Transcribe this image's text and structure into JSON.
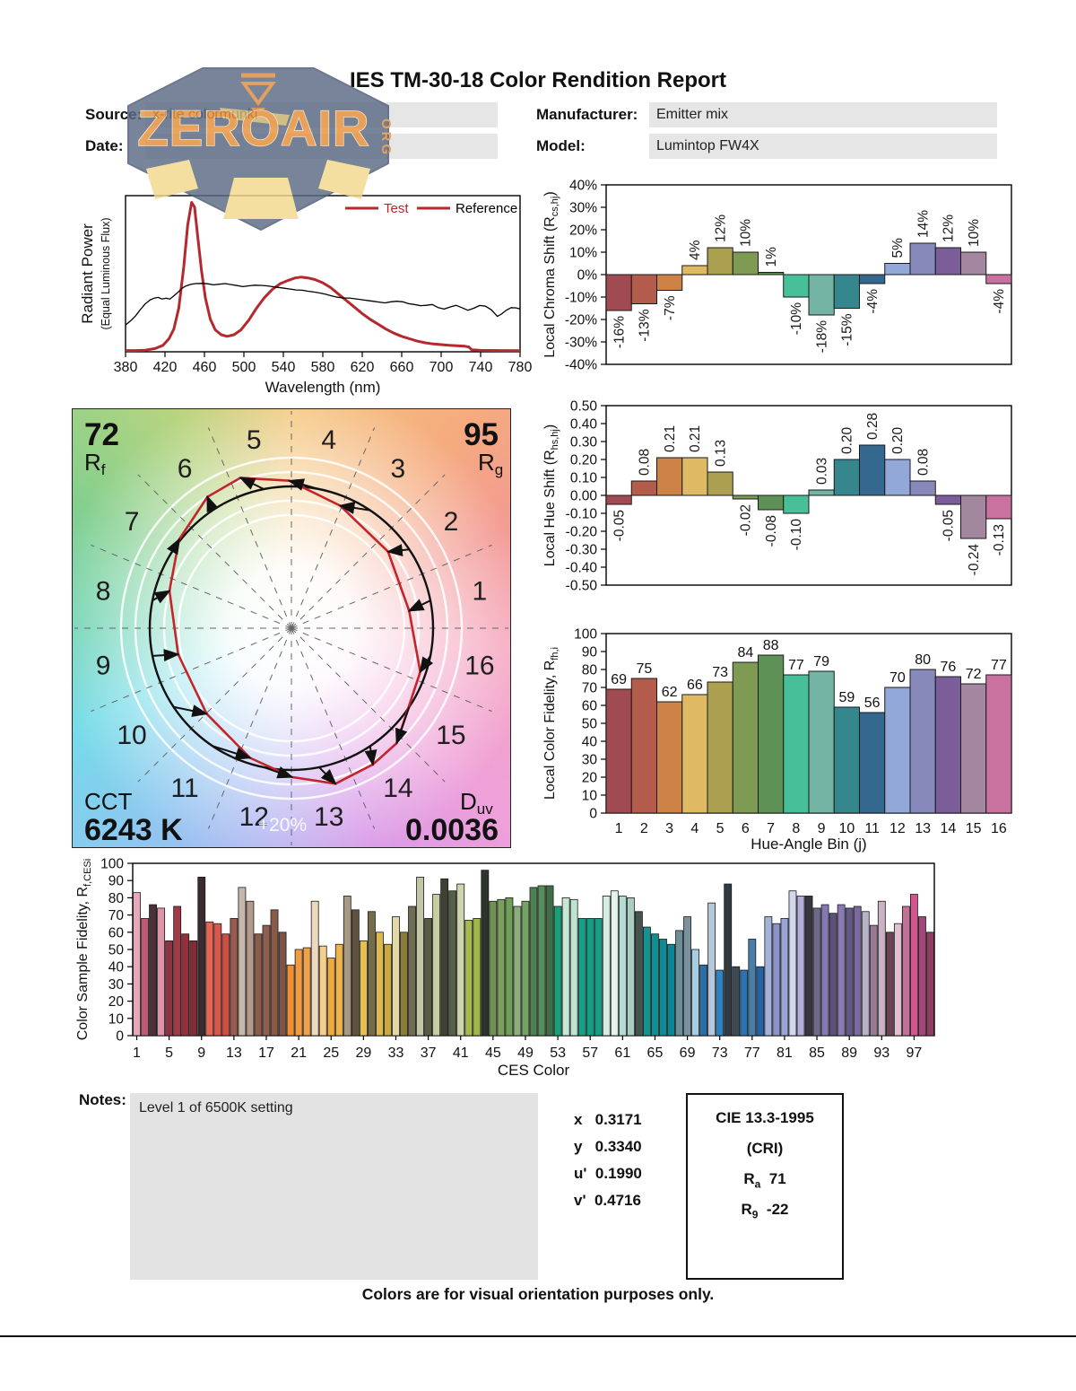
{
  "title": "IES TM-30-18 Color Rendition Report",
  "header": {
    "source_label": "Source:",
    "source_value": "x-rite colormunki",
    "date_label": "Date:",
    "date_value": "",
    "manufacturer_label": "Manufacturer:",
    "manufacturer_value": "Emitter mix",
    "model_label": "Model:",
    "model_value": "Lumintop FW4X"
  },
  "watermark": {
    "text": "ZEROAIR",
    "org": "ORG"
  },
  "notes": {
    "label": "Notes:",
    "text": "Level 1 of 6500K setting"
  },
  "chromaticity": {
    "items": [
      {
        "label": "x",
        "value": "0.3171"
      },
      {
        "label": "y",
        "value": "0.3340"
      },
      {
        "label": "u'",
        "value": "0.1990"
      },
      {
        "label": "v'",
        "value": "0.4716"
      }
    ]
  },
  "cie": {
    "line1": "CIE 13.3-1995",
    "line2": "(CRI)",
    "ra_main": "R",
    "ra_sub": "a",
    "ra_value": "71",
    "r9_main": "R",
    "r9_sub": "9",
    "r9_value": "-22"
  },
  "footer": "Colors are for visual orientation purposes only.",
  "bin_colors": [
    "#A04A52",
    "#B45C4B",
    "#CC8345",
    "#DFB964",
    "#ABA04F",
    "#7F9A52",
    "#5E9156",
    "#47C09A",
    "#73B4A5",
    "#35878D",
    "#34688F",
    "#91A8D8",
    "#8789BA",
    "#7B5D9A",
    "#A3879F",
    "#C9729F"
  ],
  "chart_data": {
    "spd": {
      "type": "line",
      "xlabel": "Wavelength (nm)",
      "ylabel": "Radiant Power",
      "ylabel2": "(Equal Luminous Flux)",
      "x_ticks": [
        380,
        420,
        460,
        500,
        540,
        580,
        620,
        660,
        700,
        740,
        780
      ],
      "xlim": [
        380,
        780
      ],
      "legend": [
        {
          "label": "Test",
          "line_color": "#B5282D",
          "text_color": "#B5282D"
        },
        {
          "label": "Reference",
          "line_color": "#B5282D",
          "text_color": "#000000"
        }
      ],
      "series": [
        {
          "name": "Test",
          "color": "#B5282D",
          "width": 3,
          "points": [
            [
              380,
              0.008
            ],
            [
              390,
              0.008
            ],
            [
              400,
              0.01
            ],
            [
              410,
              0.02
            ],
            [
              418,
              0.04
            ],
            [
              424,
              0.08
            ],
            [
              429,
              0.14
            ],
            [
              434,
              0.27
            ],
            [
              439,
              0.52
            ],
            [
              443,
              0.78
            ],
            [
              447,
              0.92
            ],
            [
              450,
              0.89
            ],
            [
              453,
              0.72
            ],
            [
              457,
              0.5
            ],
            [
              461,
              0.33
            ],
            [
              466,
              0.2
            ],
            [
              471,
              0.135
            ],
            [
              477,
              0.105
            ],
            [
              483,
              0.095
            ],
            [
              490,
              0.105
            ],
            [
              497,
              0.135
            ],
            [
              505,
              0.195
            ],
            [
              513,
              0.27
            ],
            [
              521,
              0.335
            ],
            [
              529,
              0.385
            ],
            [
              537,
              0.42
            ],
            [
              545,
              0.44
            ],
            [
              552,
              0.455
            ],
            [
              558,
              0.46
            ],
            [
              565,
              0.455
            ],
            [
              572,
              0.445
            ],
            [
              580,
              0.425
            ],
            [
              588,
              0.395
            ],
            [
              596,
              0.355
            ],
            [
              604,
              0.315
            ],
            [
              612,
              0.275
            ],
            [
              620,
              0.235
            ],
            [
              628,
              0.2
            ],
            [
              636,
              0.17
            ],
            [
              644,
              0.14
            ],
            [
              652,
              0.115
            ],
            [
              660,
              0.095
            ],
            [
              668,
              0.08
            ],
            [
              676,
              0.065
            ],
            [
              684,
              0.055
            ],
            [
              692,
              0.048
            ],
            [
              700,
              0.044
            ],
            [
              708,
              0.04
            ],
            [
              716,
              0.037
            ],
            [
              724,
              0.034
            ],
            [
              728,
              0.03
            ],
            [
              731,
              0.012
            ],
            [
              740,
              0.009
            ],
            [
              760,
              0.008
            ],
            [
              780,
              0.007
            ]
          ]
        },
        {
          "name": "Reference",
          "color": "#000000",
          "width": 1.3,
          "points": [
            [
              380,
              0.165
            ],
            [
              385,
              0.19
            ],
            [
              390,
              0.22
            ],
            [
              395,
              0.26
            ],
            [
              400,
              0.295
            ],
            [
              405,
              0.32
            ],
            [
              409,
              0.33
            ],
            [
              413,
              0.335
            ],
            [
              417,
              0.325
            ],
            [
              421,
              0.33
            ],
            [
              425,
              0.325
            ],
            [
              429,
              0.345
            ],
            [
              433,
              0.365
            ],
            [
              437,
              0.39
            ],
            [
              441,
              0.405
            ],
            [
              446,
              0.415
            ],
            [
              451,
              0.42
            ],
            [
              457,
              0.421
            ],
            [
              463,
              0.419
            ],
            [
              469,
              0.412
            ],
            [
              475,
              0.416
            ],
            [
              481,
              0.42
            ],
            [
              487,
              0.414
            ],
            [
              493,
              0.408
            ],
            [
              499,
              0.401
            ],
            [
              505,
              0.406
            ],
            [
              511,
              0.41
            ],
            [
              517,
              0.409
            ],
            [
              523,
              0.406
            ],
            [
              529,
              0.401
            ],
            [
              535,
              0.396
            ],
            [
              541,
              0.391
            ],
            [
              547,
              0.386
            ],
            [
              553,
              0.381
            ],
            [
              559,
              0.379
            ],
            [
              565,
              0.373
            ],
            [
              571,
              0.368
            ],
            [
              577,
              0.362
            ],
            [
              583,
              0.354
            ],
            [
              589,
              0.344
            ],
            [
              595,
              0.336
            ],
            [
              601,
              0.331
            ],
            [
              607,
              0.331
            ],
            [
              613,
              0.326
            ],
            [
              619,
              0.321
            ],
            [
              625,
              0.316
            ],
            [
              631,
              0.311
            ],
            [
              637,
              0.306
            ],
            [
              643,
              0.301
            ],
            [
              649,
              0.308
            ],
            [
              655,
              0.311
            ],
            [
              661,
              0.308
            ],
            [
              667,
              0.296
            ],
            [
              673,
              0.291
            ],
            [
              679,
              0.284
            ],
            [
              685,
              0.286
            ],
            [
              691,
              0.291
            ],
            [
              697,
              0.272
            ],
            [
              703,
              0.263
            ],
            [
              709,
              0.276
            ],
            [
              715,
              0.286
            ],
            [
              721,
              0.272
            ],
            [
              727,
              0.256
            ],
            [
              733,
              0.268
            ],
            [
              739,
              0.285
            ],
            [
              745,
              0.281
            ],
            [
              751,
              0.258
            ],
            [
              757,
              0.218
            ],
            [
              761,
              0.232
            ],
            [
              766,
              0.256
            ],
            [
              771,
              0.272
            ],
            [
              776,
              0.27
            ],
            [
              780,
              0.264
            ]
          ]
        }
      ]
    },
    "chroma_shift": {
      "type": "bar",
      "ylabel_pre": "Local Chroma Shift (R",
      "ylabel_sub": "cs,hj",
      "ylabel_post": ")",
      "ylim": [
        -40,
        40
      ],
      "ytick_labels": [
        "40%",
        "30%",
        "20%",
        "10%",
        "0%",
        "-10%",
        "-20%",
        "-30%",
        "-40%"
      ],
      "values": [
        -16,
        -13,
        -7,
        4,
        12,
        10,
        1,
        -10,
        -18,
        -15,
        -4,
        5,
        14,
        12,
        10,
        -4
      ],
      "value_labels": [
        "-16%",
        "-13%",
        "-7%",
        "4%",
        "12%",
        "10%",
        "1%",
        "-10%",
        "-18%",
        "-15%",
        "-4%",
        "5%",
        "14%",
        "12%",
        "10%",
        "-4%"
      ]
    },
    "hue_shift": {
      "type": "bar",
      "ylabel_pre": "Local Hue Shift (R",
      "ylabel_sub": "hs,hj",
      "ylabel_post": ")",
      "ylim": [
        -0.5,
        0.5
      ],
      "ytick_labels": [
        "0.50",
        "0.40",
        "0.30",
        "0.20",
        "0.10",
        "0.00",
        "-0.10",
        "-0.20",
        "-0.30",
        "-0.40",
        "-0.50"
      ],
      "values": [
        -0.05,
        0.08,
        0.21,
        0.21,
        0.13,
        -0.02,
        -0.08,
        -0.1,
        0.03,
        0.2,
        0.28,
        0.2,
        0.08,
        -0.05,
        -0.24,
        -0.13
      ],
      "value_labels": [
        "-0.05",
        "0.08",
        "0.21",
        "0.21",
        "0.13",
        "-0.02",
        "-0.08",
        "-0.10",
        "0.03",
        "0.20",
        "0.28",
        "0.20",
        "0.08",
        "-0.05",
        "-0.24",
        "-0.13"
      ]
    },
    "local_fidelity": {
      "type": "bar",
      "ylabel_pre": "Local Color Fidelity, R",
      "ylabel_sub": "fh,i",
      "ylabel_post": "",
      "xlabel": "Hue-Angle Bin (j)",
      "ylim": [
        0,
        100
      ],
      "ytick_labels": [
        "100",
        "90",
        "80",
        "70",
        "60",
        "50",
        "40",
        "30",
        "20",
        "10",
        "0"
      ],
      "categories": [
        "1",
        "2",
        "3",
        "4",
        "5",
        "6",
        "7",
        "8",
        "9",
        "10",
        "11",
        "12",
        "13",
        "14",
        "15",
        "16"
      ],
      "values": [
        69,
        75,
        62,
        66,
        73,
        84,
        88,
        77,
        79,
        59,
        56,
        70,
        80,
        76,
        72,
        77
      ]
    },
    "cvg": {
      "type": "color-vector-graphic",
      "rf_value": "72",
      "rf_main": "R",
      "rf_sub": "f",
      "rg_value": "95",
      "rg_main": "R",
      "rg_sub": "g",
      "cct_label": "CCT",
      "cct_value": "6243 K",
      "duv_main": "D",
      "duv_sub": "uv",
      "duv_value": "0.0036",
      "ring_label": "+20%",
      "bin_labels": [
        "1",
        "2",
        "3",
        "4",
        "5",
        "6",
        "7",
        "8",
        "9",
        "10",
        "11",
        "12",
        "13",
        "14",
        "15",
        "16"
      ],
      "chroma_pct": [
        -16,
        -13,
        -7,
        4,
        12,
        10,
        1,
        -10,
        -18,
        -15,
        -4,
        5,
        14,
        12,
        10,
        -4
      ],
      "hue_shift": [
        -0.05,
        0.08,
        0.21,
        0.21,
        0.13,
        -0.02,
        -0.08,
        -0.1,
        0.03,
        0.2,
        0.28,
        0.2,
        0.08,
        -0.05,
        -0.24,
        -0.13
      ],
      "test_color": "#C5242B",
      "reference_color": "#111111"
    },
    "ces": {
      "type": "bar",
      "ylabel_pre": "Color Sample Fidelity, R",
      "ylabel_sub": "f,CESi",
      "ylabel_post": "",
      "xlabel": "CES Color",
      "ylim": [
        0,
        100
      ],
      "ytick_labels": [
        "100",
        "90",
        "80",
        "70",
        "60",
        "50",
        "40",
        "30",
        "20",
        "10",
        "0"
      ],
      "x_ticks": [
        1,
        5,
        9,
        13,
        17,
        21,
        25,
        29,
        33,
        37,
        41,
        45,
        49,
        53,
        57,
        61,
        65,
        69,
        73,
        77,
        81,
        85,
        89,
        93,
        97
      ],
      "values": [
        83,
        68,
        76,
        74,
        55,
        75,
        59,
        55,
        92,
        66,
        65,
        59,
        68,
        86,
        78,
        59,
        64,
        73,
        60,
        41,
        50,
        51,
        78,
        52,
        45,
        53,
        81,
        73,
        55,
        72,
        60,
        53,
        69,
        60,
        75,
        92,
        68,
        82,
        91,
        84,
        88,
        67,
        68,
        96,
        78,
        79,
        80,
        75,
        78,
        86,
        87,
        87,
        75,
        80,
        79,
        68,
        68,
        68,
        81,
        84,
        81,
        80,
        72,
        63,
        59,
        56,
        53,
        61,
        69,
        50,
        41,
        77,
        38,
        88,
        40,
        38,
        56,
        40,
        69,
        65,
        68,
        84,
        81,
        81,
        74,
        76,
        71,
        76,
        74,
        75,
        72,
        64,
        78,
        60,
        65,
        75,
        82,
        69,
        60
      ],
      "colors": [
        "#E7A8BC",
        "#C05A74",
        "#4A3038",
        "#DE93A8",
        "#8E3344",
        "#A03A48",
        "#942F3C",
        "#822C38",
        "#3A2C2E",
        "#E56456",
        "#DB574D",
        "#CC4F44",
        "#9A5A50",
        "#C7B6AB",
        "#B49A8C",
        "#8C5C4C",
        "#90604F",
        "#8A5A48",
        "#7E5448",
        "#EF8F35",
        "#F09A42",
        "#EDA14B",
        "#ECD9BE",
        "#F5CF8E",
        "#F0A93F",
        "#EDB44D",
        "#A89A80",
        "#5F5340",
        "#E6BF51",
        "#746C4A",
        "#DCB94E",
        "#C9A83E",
        "#E3D9A4",
        "#8A7C3A",
        "#6E6E54",
        "#C2C6A6",
        "#575C42",
        "#C6CDA0",
        "#3E4234",
        "#556046",
        "#CCD6AE",
        "#A6B84E",
        "#9EB847",
        "#2E332C",
        "#6F9254",
        "#7AA05E",
        "#70A058",
        "#8CAE7C",
        "#74A464",
        "#4E8050",
        "#588C5A",
        "#406F47",
        "#18A078",
        "#C9E7D5",
        "#BFE3D1",
        "#16A286",
        "#14A085",
        "#12A087",
        "#D5EDE3",
        "#E5F3EB",
        "#B3DDD3",
        "#A9CDC3",
        "#45534F",
        "#12948E",
        "#108E92",
        "#0D8A94",
        "#0A8694",
        "#6A8E9A",
        "#7A929E",
        "#A8CCE2",
        "#2A6EA8",
        "#B4C8DA",
        "#2E84C2",
        "#323A42",
        "#3C4A58",
        "#2A72B4",
        "#4A7EA8",
        "#2662A8",
        "#A4B2D8",
        "#8A94C8",
        "#98A4D4",
        "#D4D8EC",
        "#B4AED8",
        "#3A3640",
        "#6E6A88",
        "#8678B2",
        "#5C5278",
        "#8A7AB4",
        "#655A84",
        "#7A6AA0",
        "#B8B2C8",
        "#9A7A92",
        "#C8B2C4",
        "#6A4456",
        "#E2C2D2",
        "#C2729A",
        "#D4548E",
        "#A4487A",
        "#8E3C62"
      ]
    }
  }
}
